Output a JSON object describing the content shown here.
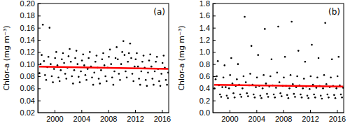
{
  "chart_data": [
    {
      "type": "scatter",
      "annotation": "(a)",
      "y_label": "Chlor-a (mg m⁻³)",
      "xlim": [
        1997.5,
        2017
      ],
      "xticks": [
        2000,
        2004,
        2008,
        2012,
        2016
      ],
      "ylim": [
        0.02,
        0.2
      ],
      "yticks": [
        0.02,
        0.04,
        0.06,
        0.08,
        {
          "value": 0.1,
          "label": "0.10"
        },
        0.12,
        0.14,
        0.16,
        0.18,
        {
          "value": 0.2,
          "label": "0.20"
        }
      ],
      "x": [
        1997.75,
        1997.92,
        1998.08,
        1998.25,
        1998.42,
        1998.58,
        1998.75,
        1998.92,
        1999.08,
        1999.25,
        1999.42,
        1999.58,
        1999.75,
        1999.92,
        2000.08,
        2000.25,
        2000.42,
        2000.58,
        2000.75,
        2000.92,
        2001.08,
        2001.25,
        2001.42,
        2001.58,
        2001.75,
        2001.92,
        2002.08,
        2002.25,
        2002.42,
        2002.58,
        2002.75,
        2002.92,
        2003.08,
        2003.25,
        2003.42,
        2003.58,
        2003.75,
        2003.92,
        2004.08,
        2004.25,
        2004.42,
        2004.58,
        2004.75,
        2004.92,
        2005.08,
        2005.25,
        2005.42,
        2005.58,
        2005.75,
        2005.92,
        2006.08,
        2006.25,
        2006.42,
        2006.58,
        2006.75,
        2006.92,
        2007.08,
        2007.25,
        2007.42,
        2007.58,
        2007.75,
        2007.92,
        2008.08,
        2008.25,
        2008.42,
        2008.58,
        2008.75,
        2008.92,
        2009.08,
        2009.25,
        2009.42,
        2009.58,
        2009.75,
        2009.92,
        2010.08,
        2010.25,
        2010.42,
        2010.58,
        2010.75,
        2010.92,
        2011.08,
        2011.25,
        2011.42,
        2011.58,
        2011.75,
        2011.92,
        2012.08,
        2012.25,
        2012.42,
        2012.58,
        2012.75,
        2012.92,
        2013.08,
        2013.25,
        2013.42,
        2013.58,
        2013.75,
        2013.92,
        2014.08,
        2014.25,
        2014.42,
        2014.58,
        2014.75,
        2014.92,
        2015.08,
        2015.25,
        2015.42,
        2015.58,
        2015.75,
        2015.92,
        2016.08,
        2016.25,
        2016.42,
        2016.58,
        2016.75,
        2016.92
      ],
      "series": [
        {
          "type": "scatter",
          "color": "#000000",
          "marker": "circle",
          "values": [
            0.085,
            0.1,
            0.115,
            0.165,
            0.105,
            0.082,
            0.074,
            0.095,
            0.112,
            0.16,
            0.1,
            0.08,
            0.07,
            0.092,
            0.11,
            0.12,
            0.098,
            0.078,
            0.072,
            0.09,
            0.108,
            0.118,
            0.102,
            0.084,
            0.076,
            0.094,
            0.113,
            0.125,
            0.104,
            0.08,
            0.068,
            0.09,
            0.11,
            0.122,
            0.1,
            0.079,
            0.07,
            0.088,
            0.106,
            0.116,
            0.098,
            0.082,
            0.074,
            0.092,
            0.11,
            0.12,
            0.096,
            0.078,
            0.066,
            0.086,
            0.104,
            0.114,
            0.094,
            0.076,
            0.068,
            0.09,
            0.108,
            0.118,
            0.098,
            0.08,
            0.072,
            0.094,
            0.112,
            0.124,
            0.1,
            0.078,
            0.066,
            0.088,
            0.11,
            0.128,
            0.108,
            0.084,
            0.074,
            0.1,
            0.12,
            0.138,
            0.115,
            0.088,
            0.078,
            0.104,
            0.118,
            0.134,
            0.11,
            0.084,
            0.072,
            0.096,
            0.108,
            0.118,
            0.096,
            0.076,
            0.066,
            0.088,
            0.104,
            0.114,
            0.094,
            0.074,
            0.064,
            0.086,
            0.106,
            0.116,
            0.096,
            0.076,
            0.066,
            0.088,
            0.104,
            0.112,
            0.092,
            0.072,
            0.064,
            0.084,
            0.102,
            0.114,
            0.094,
            0.074,
            0.066,
            0.086
          ]
        },
        {
          "type": "line",
          "color": "#ff0000",
          "line_style": "solid",
          "x": [
            1997.7,
            2016.95
          ],
          "values": [
            0.096,
            0.092
          ]
        }
      ]
    },
    {
      "type": "scatter",
      "annotation": "(b)",
      "y_label": "Chlor-a (mg m⁻³)",
      "xlim": [
        1997.5,
        2017
      ],
      "xticks": [
        2000,
        2004,
        2008,
        2012,
        2016
      ],
      "ylim": [
        0,
        1.8
      ],
      "yticks": [
        {
          "value": 0,
          "label": "0.0"
        },
        0.2,
        0.4,
        0.6,
        0.8,
        {
          "value": 1,
          "label": "1.0"
        },
        1.2,
        1.4,
        1.6,
        1.8
      ],
      "x": [
        1997.75,
        1997.92,
        1998.08,
        1998.25,
        1998.42,
        1998.58,
        1998.75,
        1998.92,
        1999.08,
        1999.25,
        1999.42,
        1999.58,
        1999.75,
        1999.92,
        2000.08,
        2000.25,
        2000.42,
        2000.58,
        2000.75,
        2000.92,
        2001.08,
        2001.25,
        2001.42,
        2001.58,
        2001.75,
        2001.92,
        2002.08,
        2002.25,
        2002.42,
        2002.58,
        2002.75,
        2002.92,
        2003.08,
        2003.25,
        2003.42,
        2003.58,
        2003.75,
        2003.92,
        2004.08,
        2004.25,
        2004.42,
        2004.58,
        2004.75,
        2004.92,
        2005.08,
        2005.25,
        2005.42,
        2005.58,
        2005.75,
        2005.92,
        2006.08,
        2006.25,
        2006.42,
        2006.58,
        2006.75,
        2006.92,
        2007.08,
        2007.25,
        2007.42,
        2007.58,
        2007.75,
        2007.92,
        2008.08,
        2008.25,
        2008.42,
        2008.58,
        2008.75,
        2008.92,
        2009.08,
        2009.25,
        2009.42,
        2009.58,
        2009.75,
        2009.92,
        2010.08,
        2010.25,
        2010.42,
        2010.58,
        2010.75,
        2010.92,
        2011.08,
        2011.25,
        2011.42,
        2011.58,
        2011.75,
        2011.92,
        2012.08,
        2012.25,
        2012.42,
        2012.58,
        2012.75,
        2012.92,
        2013.08,
        2013.25,
        2013.42,
        2013.58,
        2013.75,
        2013.92,
        2014.08,
        2014.25,
        2014.42,
        2014.58,
        2014.75,
        2014.92,
        2015.08,
        2015.25,
        2015.42,
        2015.58,
        2015.75,
        2015.92,
        2016.08,
        2016.25,
        2016.42,
        2016.58,
        2016.75,
        2016.92
      ],
      "series": [
        {
          "type": "scatter",
          "color": "#000000",
          "marker": "circle",
          "values": [
            0.4,
            0.55,
            0.6,
            0.85,
            0.45,
            0.3,
            0.26,
            0.42,
            0.58,
            0.78,
            0.42,
            0.28,
            0.24,
            0.4,
            0.62,
            0.9,
            0.48,
            0.32,
            0.25,
            0.44,
            0.55,
            0.8,
            0.46,
            0.3,
            0.26,
            0.4,
            0.6,
            1.58,
            0.5,
            0.32,
            0.27,
            0.45,
            0.64,
            1.1,
            0.46,
            0.3,
            0.25,
            0.42,
            0.58,
            0.95,
            0.44,
            0.28,
            0.24,
            0.4,
            0.62,
            1.38,
            0.48,
            0.31,
            0.26,
            0.43,
            0.6,
            0.88,
            0.45,
            0.3,
            0.25,
            0.41,
            0.66,
            1.42,
            0.5,
            0.32,
            0.27,
            0.44,
            0.58,
            0.92,
            0.44,
            0.29,
            0.24,
            0.4,
            0.62,
            1.5,
            0.47,
            0.31,
            0.26,
            0.42,
            0.6,
            1.02,
            0.45,
            0.3,
            0.25,
            0.4,
            0.56,
            0.84,
            0.43,
            0.28,
            0.24,
            0.39,
            0.6,
            1.12,
            0.46,
            0.3,
            0.25,
            0.41,
            0.58,
            0.9,
            0.44,
            0.28,
            0.23,
            0.4,
            0.62,
            1.48,
            0.47,
            0.3,
            0.25,
            0.42,
            0.58,
            0.88,
            0.44,
            0.29,
            0.24,
            0.4,
            0.6,
            0.92,
            0.45,
            0.3,
            0.25,
            0.41
          ]
        },
        {
          "type": "line",
          "color": "#ff0000",
          "line_style": "solid",
          "x": [
            1997.7,
            2016.95
          ],
          "values": [
            0.46,
            0.43
          ]
        }
      ]
    }
  ]
}
